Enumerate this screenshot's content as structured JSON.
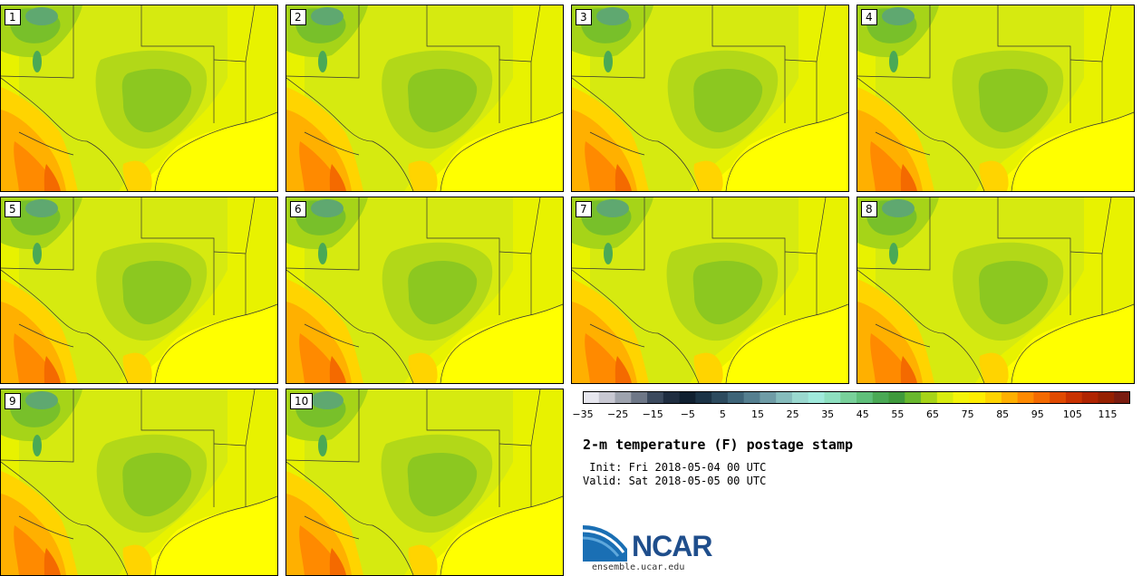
{
  "panels": [
    {
      "label": "1"
    },
    {
      "label": "2"
    },
    {
      "label": "3"
    },
    {
      "label": "4"
    },
    {
      "label": "5"
    },
    {
      "label": "6"
    },
    {
      "label": "7"
    },
    {
      "label": "8"
    },
    {
      "label": "9"
    },
    {
      "label": "10"
    }
  ],
  "colorbar": {
    "tick_labels": [
      "−35",
      "−25",
      "−15",
      "−5",
      "5",
      "15",
      "25",
      "35",
      "45",
      "55",
      "65",
      "75",
      "85",
      "95",
      "105",
      "115"
    ],
    "colors": [
      "#e6e6ee",
      "#c8c8d2",
      "#9ea3ae",
      "#6e7787",
      "#3c4a5e",
      "#1f2d40",
      "#102030",
      "#1b3346",
      "#2c4a5e",
      "#3e6478",
      "#557f90",
      "#6f9ca6",
      "#86bcbc",
      "#9ad8cf",
      "#a0eadc",
      "#8ee0c0",
      "#78d09a",
      "#5fbf7a",
      "#4aa955",
      "#3f9a3c",
      "#69b82e",
      "#a6d418",
      "#d8ec10",
      "#f4f40a",
      "#ffee00",
      "#ffd400",
      "#ffb000",
      "#ff8a00",
      "#f46a00",
      "#e04a00",
      "#c93200",
      "#b02400",
      "#962000",
      "#7a1c10"
    ],
    "colors_note_hidden": ""
  },
  "title": "2-m temperature (F) postage stamp",
  "init_text": " Init: Fri 2018-05-04 00 UTC",
  "valid_text": "Valid: Sat 2018-05-05 00 UTC",
  "logo": {
    "text": "NCAR",
    "url": "ensemble.ucar.edu",
    "color": "#1f4e8c"
  }
}
